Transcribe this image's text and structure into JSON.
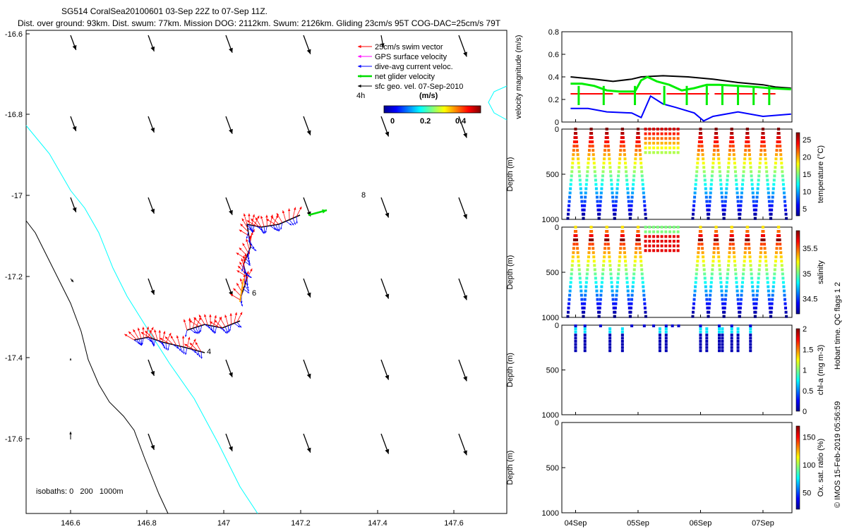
{
  "header": {
    "line1": "SG514 CoralSea20100601 03-Sep 22Z to 07-Sep 11Z.",
    "line2": "Dist. over ground: 93km. Dist. swum: 77km. Mission DOG: 2112km. Swum: 2126km. Gliding 23cm/s 95T COG-DAC=25cm/s 79T"
  },
  "map": {
    "x_ticks": [
      "146.6",
      "146.8",
      "147",
      "147.2",
      "147.4",
      "147.6"
    ],
    "y_ticks": [
      "-16.6",
      "-16.8",
      "-17",
      "-17.2",
      "-17.4",
      "-17.6"
    ],
    "legend": [
      {
        "label": "25cm/s swim vector",
        "color": "#ff0000"
      },
      {
        "label": "GPS surface velocity",
        "color": "#ff00ff"
      },
      {
        "label": "dive-avg current veloc.",
        "color": "#0000ff"
      },
      {
        "label": "net glider velocity",
        "color": "#00dd00"
      },
      {
        "label": "sfc geo. vel. 07-Sep-2010",
        "color": "#000000"
      }
    ],
    "time_label": "4h",
    "colorbar_title": "(m/s)",
    "colorbar_ticks": [
      "0",
      "0.2",
      "0.4"
    ],
    "isobaths_label": "isobaths: 0   200   1000m",
    "day_labels": [
      "4",
      "6",
      "8"
    ]
  },
  "chart_data": [
    {
      "type": "line",
      "title": "",
      "ylabel": "velocity magnitude (m/s)",
      "ylim": [
        0,
        0.8
      ],
      "y_ticks": [
        "0",
        "0.2",
        "0.4",
        "0.6",
        "0.8"
      ],
      "x_ticks": [
        "04Sep",
        "05Sep",
        "06Sep",
        "07Sep"
      ],
      "series": [
        {
          "color": "#000000",
          "x": [
            3.92,
            4.3,
            4.6,
            4.9,
            5.05,
            5.4,
            5.8,
            6.2,
            6.6,
            7.0,
            7.2,
            7.45
          ],
          "y": [
            0.4,
            0.38,
            0.36,
            0.38,
            0.4,
            0.41,
            0.4,
            0.38,
            0.35,
            0.33,
            0.31,
            0.3
          ]
        },
        {
          "color": "#ff0000",
          "x": [
            3.92,
            7.2
          ],
          "y": [
            0.25,
            0.25
          ]
        },
        {
          "color": "#0000ff",
          "x": [
            3.92,
            4.2,
            4.5,
            4.9,
            5.05,
            5.2,
            5.4,
            5.6,
            5.9,
            6.05,
            6.2,
            6.6,
            7.0,
            7.45
          ],
          "y": [
            0.12,
            0.12,
            0.09,
            0.08,
            0.04,
            0.23,
            0.16,
            0.13,
            0.08,
            0.01,
            0.05,
            0.09,
            0.05,
            0.07
          ]
        },
        {
          "color": "#00ee00",
          "x": [
            3.92,
            4.1,
            4.3,
            4.5,
            4.7,
            4.95,
            5.05,
            5.15,
            5.3,
            5.5,
            5.7,
            5.9,
            6.1,
            6.3,
            6.6,
            6.9,
            7.1,
            7.45
          ],
          "y": [
            0.34,
            0.34,
            0.32,
            0.28,
            0.27,
            0.27,
            0.37,
            0.4,
            0.36,
            0.33,
            0.28,
            0.3,
            0.33,
            0.33,
            0.32,
            0.31,
            0.3,
            0.29
          ]
        }
      ]
    },
    {
      "type": "scatter",
      "ylabel": "Depth (m)",
      "y_ticks": [
        "0",
        "500",
        "1000"
      ],
      "colorbar_label": "temperature (°C)",
      "colorbar_ticks": [
        "5",
        "10",
        "15",
        "20",
        "25"
      ]
    },
    {
      "type": "scatter",
      "ylabel": "Depth (m)",
      "y_ticks": [
        "0",
        "500",
        "1000"
      ],
      "colorbar_label": "salinity",
      "colorbar_ticks": [
        "34.5",
        "35",
        "35.5"
      ]
    },
    {
      "type": "scatter",
      "ylabel": "Depth (m)",
      "y_ticks": [
        "0",
        "500",
        "1000"
      ],
      "colorbar_label": "chl-a (mg m-3)",
      "colorbar_ticks": [
        "0",
        "0.5",
        "1",
        "1.5",
        "2"
      ]
    },
    {
      "type": "scatter",
      "ylabel": "Depth (m)",
      "y_ticks": [
        "0",
        "500",
        "1000"
      ],
      "colorbar_label": "Ox. sat. ratio (%)",
      "colorbar_ticks": [
        "50",
        "100",
        "150"
      ]
    }
  ],
  "side_text": {
    "qc": "Hobart time. QC flags 1  2",
    "copyright": "© IMOS 15-Feb-2019 05:56:59"
  }
}
